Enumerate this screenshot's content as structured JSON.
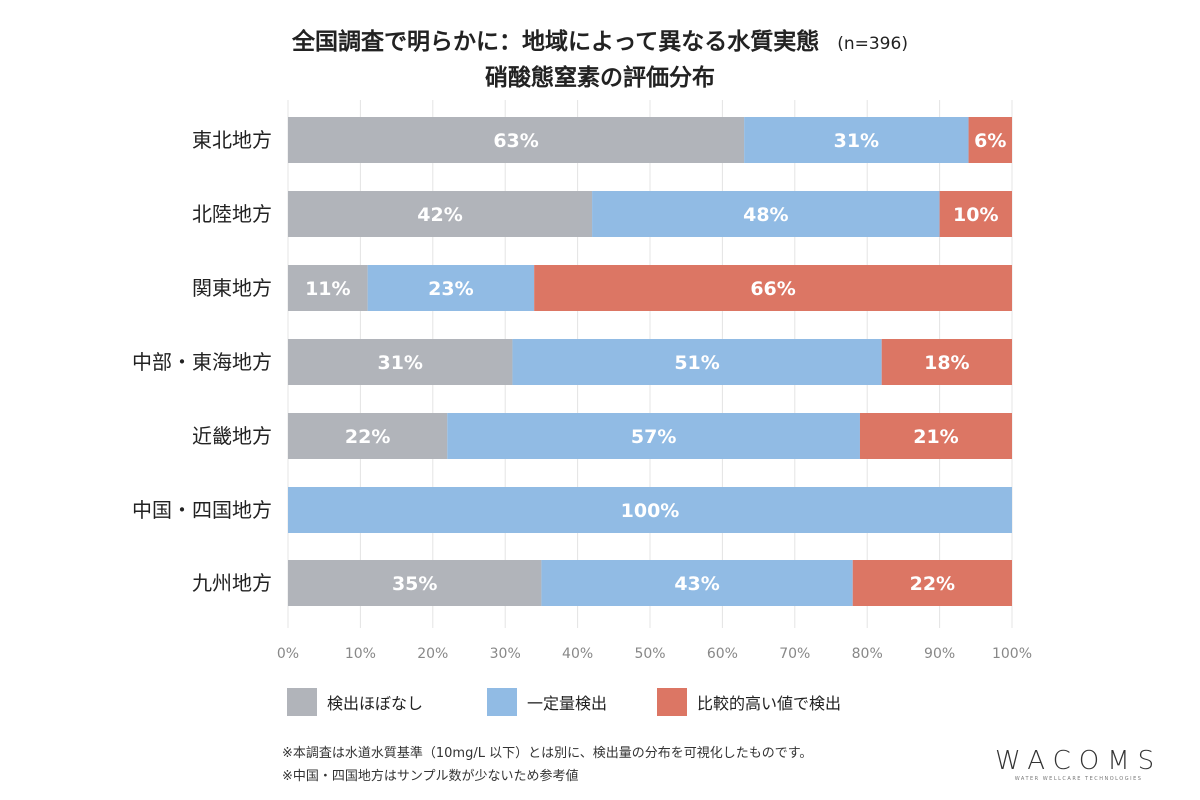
{
  "chart_data": {
    "type": "bar",
    "orientation": "horizontal",
    "stacked": true,
    "title": "全国調査で明らかに：地域によって異なる水質実態",
    "title_note": "(n=396)",
    "subtitle": "硝酸態窒素の評価分布",
    "categories": [
      "東北地方",
      "北陸地方",
      "関東地方",
      "中部・東海地方",
      "近畿地方",
      "中国・四国地方",
      "九州地方"
    ],
    "series": [
      {
        "name": "検出ほぼなし",
        "color": "#b1b4ba",
        "values": [
          63,
          42,
          11,
          31,
          22,
          0,
          35
        ]
      },
      {
        "name": "一定量検出",
        "color": "#91bbe4",
        "values": [
          31,
          48,
          23,
          51,
          57,
          100,
          43
        ]
      },
      {
        "name": "比較的高い値で検出",
        "color": "#dc7664",
        "values": [
          6,
          10,
          66,
          18,
          21,
          0,
          22
        ]
      }
    ],
    "xlim": [
      0,
      100
    ],
    "xticks": [
      "0%",
      "10%",
      "20%",
      "30%",
      "40%",
      "50%",
      "60%",
      "70%",
      "80%",
      "90%",
      "100%"
    ],
    "grid": true,
    "legend": "bottom"
  },
  "notes": [
    "※本調査は水道水質基準（10mg/L 以下）とは別に、検出量の分布を可視化したものです。",
    "※中国・四国地方はサンプル数が少ないため参考値"
  ],
  "logo": {
    "main": "WACOMS",
    "sub": "WATER WELLCARE TECHNOLOGIES"
  }
}
